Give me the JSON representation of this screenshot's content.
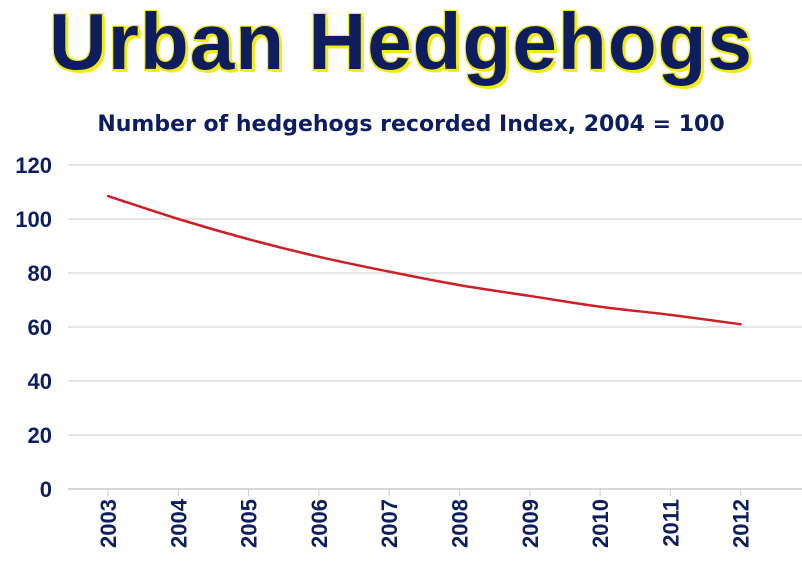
{
  "title": "Urban Hedgehogs",
  "colors": {
    "title": "#0d1d5e",
    "title_shadow": "#f2ea18",
    "text": "#0d1d5e",
    "grid": "#cccccc",
    "line": "#cc1f27"
  },
  "chart_data": {
    "type": "line",
    "title": "Number of hedgehogs recorded Index, 2004 = 100",
    "xlabel": "",
    "ylabel": "",
    "ylim": [
      0,
      120
    ],
    "yticks": [
      0,
      20,
      40,
      60,
      80,
      100,
      120
    ],
    "categories": [
      "2003",
      "2004",
      "2005",
      "2006",
      "2007",
      "2008",
      "2009",
      "2010",
      "2011",
      "2012"
    ],
    "series": [
      {
        "values": [
          108.5,
          100,
          92.5,
          86,
          80.5,
          75.5,
          71.5,
          67.5,
          64.5,
          61
        ]
      }
    ],
    "grid": true,
    "legend": "none"
  }
}
